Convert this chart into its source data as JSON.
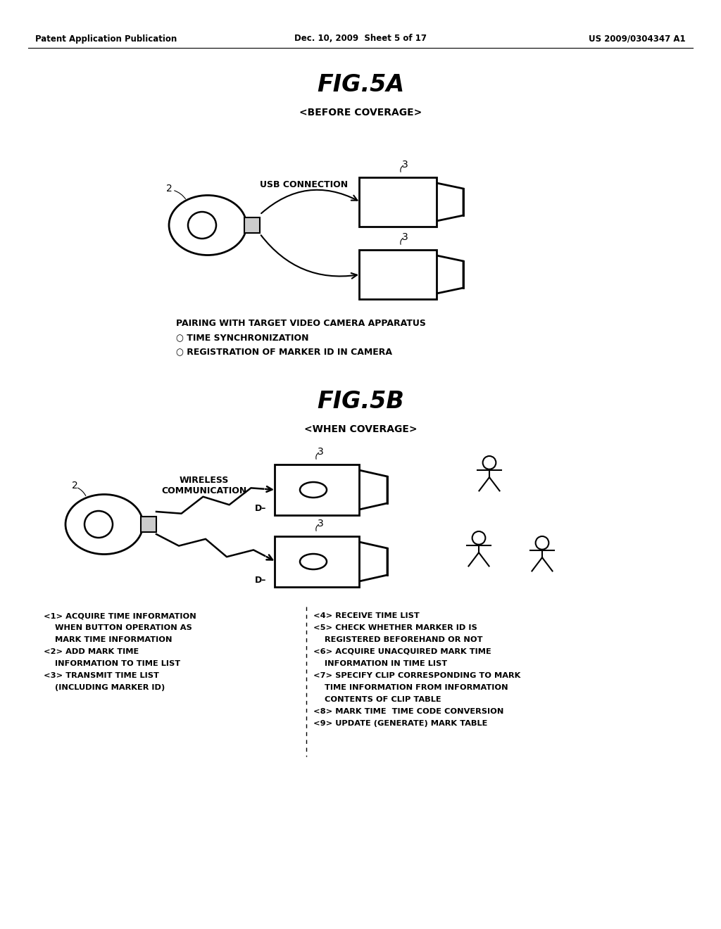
{
  "bg_color": "#ffffff",
  "header_left": "Patent Application Publication",
  "header_center": "Dec. 10, 2009  Sheet 5 of 17",
  "header_right": "US 2009/0304347 A1",
  "fig5a_title": "FIG.5A",
  "fig5a_subtitle": "<BEFORE COVERAGE>",
  "fig5b_title": "FIG.5B",
  "fig5b_subtitle": "<WHEN COVERAGE>",
  "usb_label": "USB CONNECTION",
  "wireless_label": "WIRELESS\nCOMMUNICATION",
  "pairing_line1": "PAIRING WITH TARGET VIDEO CAMERA APPARATUS",
  "pairing_line2": "○ TIME SYNCHRONIZATION",
  "pairing_line3": "○ REGISTRATION OF MARKER ID IN CAMERA",
  "left_line1": "<1> ACQUIRE TIME INFORMATION",
  "left_line2": "    WHEN BUTTON OPERATION AS",
  "left_line3": "    MARK TIME INFORMATION",
  "left_line4": "<2> ADD MARK TIME",
  "left_line5": "    INFORMATION TO TIME LIST",
  "left_line6": "<3> TRANSMIT TIME LIST",
  "left_line7": "    (INCLUDING MARKER ID)",
  "right_line1": "<4> RECEIVE TIME LIST",
  "right_line2": "<5> CHECK WHETHER MARKER ID IS",
  "right_line3": "    REGISTERED BEFOREHAND OR NOT",
  "right_line4": "<6> ACQUIRE UNACQUIRED MARK TIME",
  "right_line5": "    INFORMATION IN TIME LIST",
  "right_line6": "<7> SPECIFY CLIP CORRESPONDING TO MARK",
  "right_line7": "    TIME INFORMATION FROM INFORMATION",
  "right_line8": "    CONTENTS OF CLIP TABLE",
  "right_line9": "<8> MARK TIME  TIME CODE CONVERSION",
  "right_line10": "<9> UPDATE (GENERATE) MARK TABLE"
}
